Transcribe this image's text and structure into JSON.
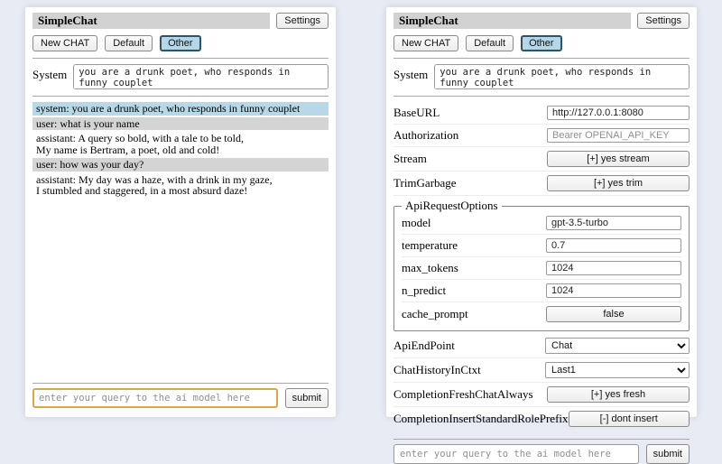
{
  "app": {
    "title": "SimpleChat",
    "settings_button": "Settings",
    "toolbar": {
      "new_chat": "New CHAT",
      "default": "Default",
      "other": "Other"
    },
    "system": {
      "label": "System",
      "prompt": "you are a drunk poet, who responds in funny couplet"
    },
    "query": {
      "placeholder": "enter your query to the ai model here",
      "submit": "submit"
    }
  },
  "chat": {
    "messages": [
      {
        "role": "system",
        "text": "system: you are a drunk poet, who responds in funny couplet"
      },
      {
        "role": "user",
        "text": "user: what is your name"
      },
      {
        "role": "assistant",
        "text": "assistant: A query so bold, with a tale to be told,\nMy name is Bertram, a poet, old and cold!"
      },
      {
        "role": "user",
        "text": "user: how was your day?"
      },
      {
        "role": "assistant",
        "text": "assistant: My day was a haze, with a drink in my gaze,\nI stumbled and staggered, in a most absurd daze!"
      }
    ]
  },
  "settings": {
    "base_url": {
      "label": "BaseURL",
      "value": "http://127.0.0.1:8080"
    },
    "authorization": {
      "label": "Authorization",
      "placeholder": "Bearer OPENAI_API_KEY"
    },
    "stream": {
      "label": "Stream",
      "button": "[+] yes stream"
    },
    "trim_garbage": {
      "label": "TrimGarbage",
      "button": "[+] yes trim"
    },
    "api_request_options": {
      "legend": "ApiRequestOptions",
      "model": {
        "label": "model",
        "value": "gpt-3.5-turbo"
      },
      "temperature": {
        "label": "temperature",
        "value": "0.7"
      },
      "max_tokens": {
        "label": "max_tokens",
        "value": "1024"
      },
      "n_predict": {
        "label": "n_predict",
        "value": "1024"
      },
      "cache_prompt": {
        "label": "cache_prompt",
        "button": "false"
      }
    },
    "api_endpoint": {
      "label": "ApiEndPoint",
      "value": "Chat"
    },
    "chat_history_in_ctxt": {
      "label": "ChatHistoryInCtxt",
      "value": "Last1"
    },
    "completion_fresh_chat_always": {
      "label": "CompletionFreshChatAlways",
      "button": "[+] yes fresh"
    },
    "completion_insert_standard_role_prefix": {
      "label": "CompletionInsertStandardRolePrefix",
      "button": "[-] dont insert"
    }
  },
  "colors": {
    "page-bg": "#e9ebf4",
    "title-bar-bg": "#d2d2d2",
    "active-tab-bg": "#b5d6e7",
    "active-tab-border": "#2f5269",
    "system-msg-bg": "#b7d8e6",
    "user-msg-bg": "#d4d4d4",
    "focus-border": "#dba740"
  }
}
